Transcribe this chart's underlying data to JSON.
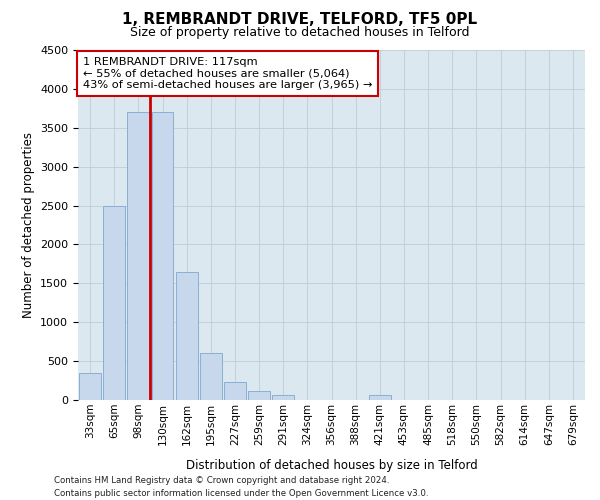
{
  "title": "1, REMBRANDT DRIVE, TELFORD, TF5 0PL",
  "subtitle": "Size of property relative to detached houses in Telford",
  "xlabel": "Distribution of detached houses by size in Telford",
  "ylabel": "Number of detached properties",
  "categories": [
    "33sqm",
    "65sqm",
    "98sqm",
    "130sqm",
    "162sqm",
    "195sqm",
    "227sqm",
    "259sqm",
    "291sqm",
    "324sqm",
    "356sqm",
    "388sqm",
    "421sqm",
    "453sqm",
    "485sqm",
    "518sqm",
    "550sqm",
    "582sqm",
    "614sqm",
    "647sqm",
    "679sqm"
  ],
  "values": [
    350,
    2500,
    3700,
    3700,
    1650,
    600,
    230,
    110,
    70,
    0,
    0,
    0,
    70,
    0,
    0,
    0,
    0,
    0,
    0,
    0,
    0
  ],
  "bar_color": "#c8d8ec",
  "bar_edge_color": "#8aaed4",
  "property_line_color": "#cc0000",
  "property_line_x": 2.5,
  "annotation_text": "1 REMBRANDT DRIVE: 117sqm\n← 55% of detached houses are smaller (5,064)\n43% of semi-detached houses are larger (3,965) →",
  "annotation_box_facecolor": "#ffffff",
  "annotation_box_edgecolor": "#cc0000",
  "ylim": [
    0,
    4500
  ],
  "yticks": [
    0,
    500,
    1000,
    1500,
    2000,
    2500,
    3000,
    3500,
    4000,
    4500
  ],
  "grid_color": "#c0ccd8",
  "axes_facecolor": "#dce8f0",
  "footer_line1": "Contains HM Land Registry data © Crown copyright and database right 2024.",
  "footer_line2": "Contains public sector information licensed under the Open Government Licence v3.0."
}
